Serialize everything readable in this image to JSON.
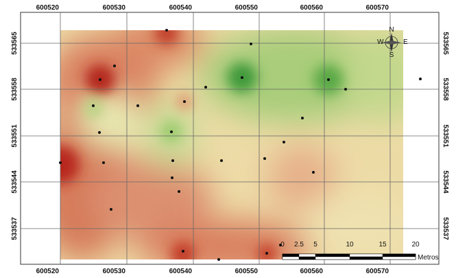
{
  "grid": {
    "x_labels": [
      "600520",
      "600530",
      "600540",
      "600550",
      "600560",
      "600570"
    ],
    "y_labels": [
      "533565",
      "533558",
      "533551",
      "533544",
      "533537"
    ]
  },
  "scale_bar": {
    "labels": [
      "0",
      "2.5",
      "5",
      "10",
      "15",
      "20"
    ],
    "unit": "Metros"
  },
  "compass": {
    "n": "N",
    "s": "S",
    "e": "E",
    "w": "W"
  }
}
